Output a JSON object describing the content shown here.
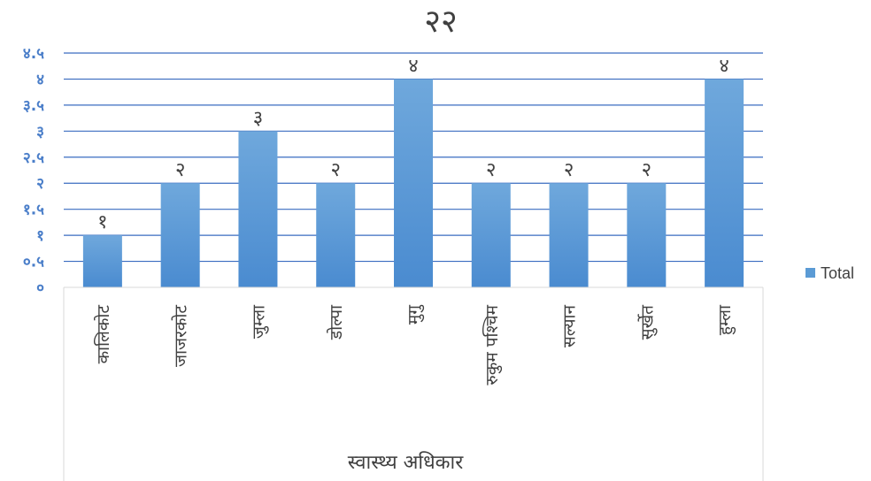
{
  "chart_data": {
    "type": "bar",
    "title": "२२",
    "xlabel": "स्वास्थ्य अधिकार",
    "ylabel": "",
    "categories": [
      "कालिकोट",
      "जाजरकोट",
      "जुम्ला",
      "डोल्पा",
      "मुगु",
      "रुकुम पश्चिम",
      "सल्यान",
      "सुर्खेत",
      "हुम्ला"
    ],
    "series": [
      {
        "name": "Total",
        "values": [
          1,
          2,
          3,
          2,
          4,
          2,
          2,
          2,
          4
        ],
        "value_labels": [
          "१",
          "२",
          "३",
          "२",
          "४",
          "२",
          "२",
          "२",
          "४"
        ]
      }
    ],
    "ylim": [
      0,
      4.5
    ],
    "yticks": [
      0,
      0.5,
      1,
      1.5,
      2,
      2.5,
      3,
      3.5,
      4,
      4.5
    ],
    "ytick_labels": [
      "०",
      "०.५",
      "१",
      "१.५",
      "२",
      "२.५",
      "३",
      "३.५",
      "४",
      "४.५"
    ],
    "grid": true,
    "legend_position": "right",
    "bar_color": "#5b9bd5",
    "tick_color": "#4a7ec9",
    "grid_color": "#3a6cc0"
  }
}
